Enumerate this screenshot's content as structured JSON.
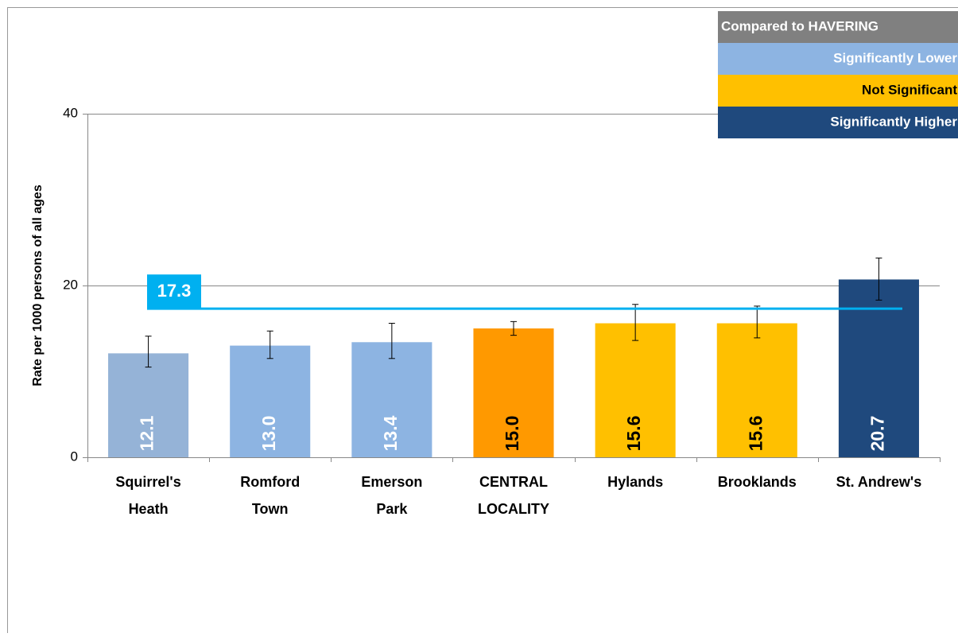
{
  "chart_data": {
    "type": "bar",
    "y_axis_label": "Rate per 1000 persons of all ages",
    "categories": [
      [
        "Squirrel's",
        "Heath"
      ],
      [
        "Romford",
        "Town"
      ],
      [
        "Emerson",
        "Park"
      ],
      [
        "CENTRAL",
        "LOCALITY"
      ],
      [
        "Hylands"
      ],
      [
        "Brooklands"
      ],
      [
        "St. Andrew's"
      ]
    ],
    "values": [
      12.1,
      13.0,
      13.4,
      15.0,
      15.6,
      15.6,
      20.7
    ],
    "value_labels": [
      "12.1",
      "13.0",
      "13.4",
      "15.0",
      "15.6",
      "15.6",
      "20.7"
    ],
    "lower": [
      10.5,
      11.5,
      11.5,
      14.2,
      13.6,
      13.9,
      18.3
    ],
    "upper": [
      14.1,
      14.7,
      15.6,
      15.8,
      17.8,
      17.6,
      23.2
    ],
    "colors": [
      "#95B3D7",
      "#8DB4E2",
      "#8DB4E2",
      "#FF9900",
      "#FFC000",
      "#FFC000",
      "#1F497D"
    ],
    "label_colors": [
      "#ffffff",
      "#ffffff",
      "#ffffff",
      "#000000",
      "#000000",
      "#000000",
      "#ffffff"
    ],
    "reference": {
      "value": 17.3,
      "label": "17.3",
      "color": "#00B0F0"
    },
    "ylim": [
      0,
      40
    ],
    "yticks": [
      0,
      20,
      40
    ],
    "grid": true,
    "legend": {
      "title": "Compared to HAVERING",
      "title_color": "#808080",
      "position": "top-right",
      "items": [
        {
          "name": "Significantly Lower",
          "color": "#8DB4E2",
          "text_color": "#ffffff"
        },
        {
          "name": "Not Significant",
          "color": "#FFC000",
          "text_color": "#000000"
        },
        {
          "name": "Significantly Higher",
          "color": "#1F497D",
          "text_color": "#ffffff"
        }
      ]
    }
  }
}
